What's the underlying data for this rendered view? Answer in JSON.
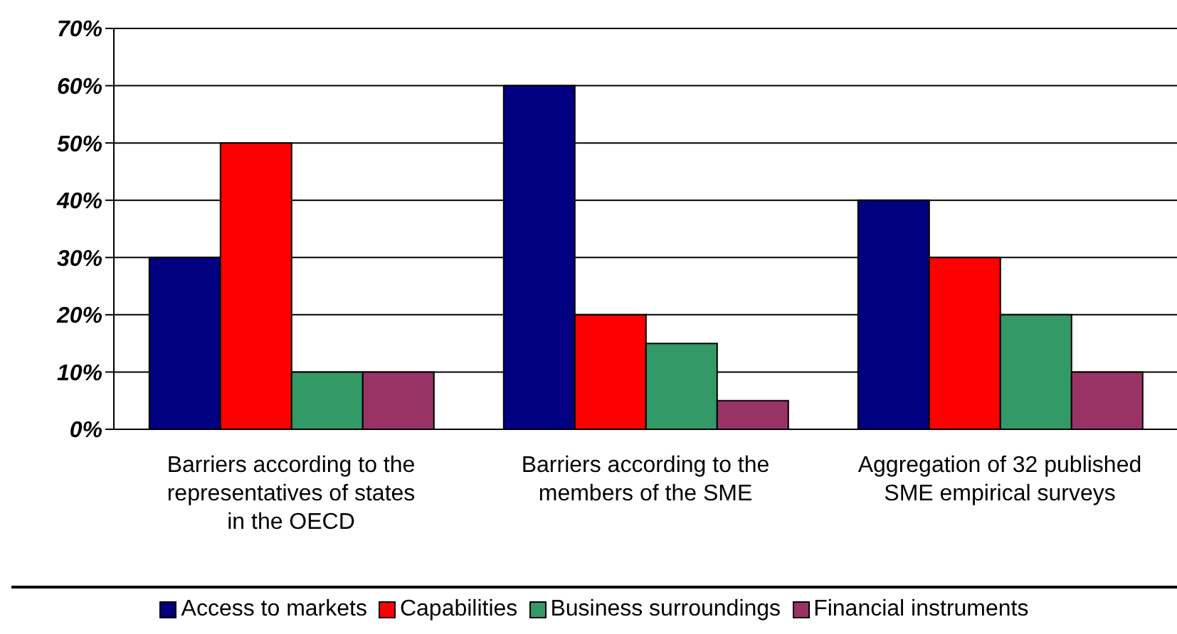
{
  "chart_data": {
    "type": "bar",
    "categories": [
      "Barriers according to the representatives of states in the OECD",
      "Barriers according to the members of the SME",
      "Aggregation of 32 published SME empirical surveys"
    ],
    "series": [
      {
        "name": "Access to markets",
        "color": "#000080",
        "values": [
          30,
          60,
          40
        ]
      },
      {
        "name": "Capabilities",
        "color": "#ff0000",
        "values": [
          50,
          20,
          30
        ]
      },
      {
        "name": "Business surroundings",
        "color": "#339966",
        "values": [
          10,
          15,
          20
        ]
      },
      {
        "name": "Financial instruments",
        "color": "#993366",
        "values": [
          10,
          5,
          10
        ]
      }
    ],
    "ylim": [
      0,
      70
    ],
    "yticks": [
      {
        "value": 0,
        "label": "0%"
      },
      {
        "value": 10,
        "label": "10%"
      },
      {
        "value": 20,
        "label": "20%"
      },
      {
        "value": 30,
        "label": "30%"
      },
      {
        "value": 40,
        "label": "40%"
      },
      {
        "value": 50,
        "label": "50%"
      },
      {
        "value": 60,
        "label": "60%"
      },
      {
        "value": 70,
        "label": "70%"
      }
    ],
    "grid": "y",
    "legend": "bottom"
  }
}
